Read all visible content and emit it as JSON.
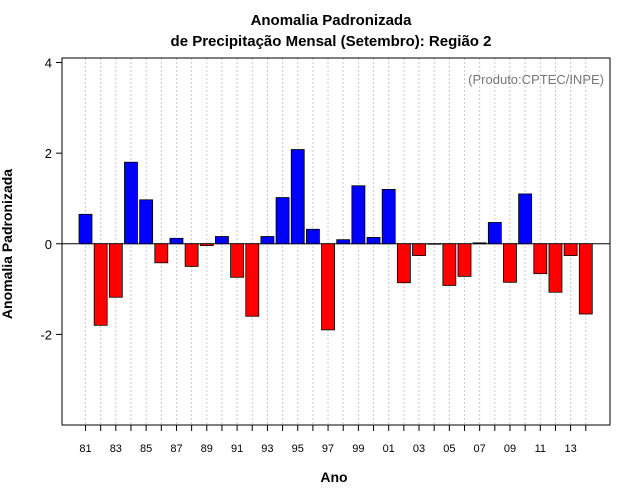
{
  "chart_data": {
    "type": "bar",
    "title_line1": "Anomalia Padronizada",
    "title_line2": "de Precipitação Mensal (Setembro): Região 2",
    "xlabel": "Ano",
    "ylabel": "Anomalia Padronizada",
    "credit": "(Produto:CPTEC/INPE)",
    "ylim": [
      -4,
      4.1
    ],
    "yticks": [
      -2,
      0,
      2,
      4
    ],
    "ytick_labels": [
      "-2",
      "0",
      "2",
      "4"
    ],
    "categories": [
      "81",
      "82",
      "83",
      "84",
      "85",
      "86",
      "87",
      "88",
      "89",
      "90",
      "91",
      "92",
      "93",
      "94",
      "95",
      "96",
      "97",
      "98",
      "99",
      "00",
      "01",
      "02",
      "03",
      "04",
      "05",
      "06",
      "07",
      "08",
      "09",
      "10",
      "11",
      "12",
      "13",
      "14"
    ],
    "xtick_labels": [
      "81",
      "83",
      "85",
      "87",
      "89",
      "91",
      "93",
      "95",
      "97",
      "99",
      "01",
      "03",
      "05",
      "07",
      "09",
      "11",
      "13"
    ],
    "values": [
      0.65,
      -1.8,
      -1.18,
      1.8,
      0.97,
      -0.42,
      0.12,
      -0.5,
      -0.04,
      0.16,
      -0.74,
      -1.6,
      0.16,
      1.02,
      2.08,
      0.32,
      -1.9,
      0.09,
      1.28,
      0.14,
      1.2,
      -0.86,
      -0.26,
      -0.01,
      -0.92,
      -0.72,
      0.02,
      0.47,
      -0.85,
      1.1,
      -0.66,
      -1.07,
      -0.26,
      -1.55
    ],
    "colors": {
      "positive": "#0000ff",
      "negative": "#ff0000",
      "grid": "#c8c8c8"
    }
  }
}
